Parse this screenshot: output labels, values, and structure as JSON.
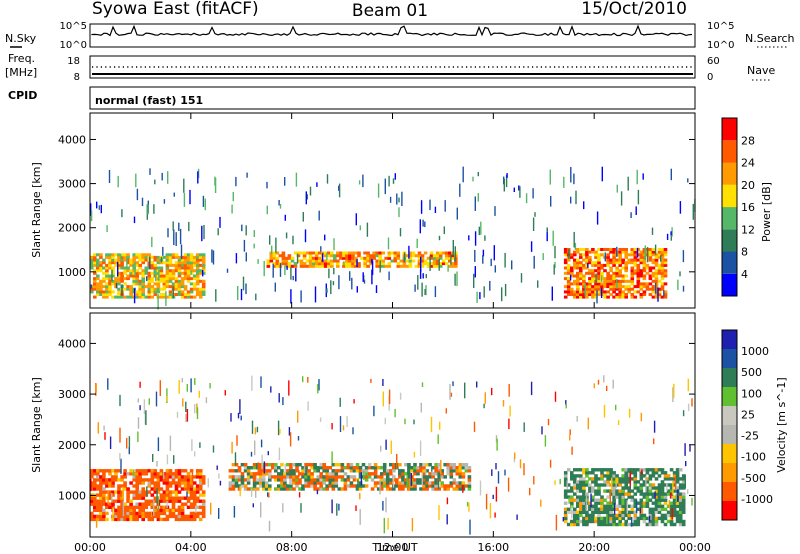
{
  "header": {
    "station": "Syowa East (fitACF)",
    "beam": "Beam 01",
    "date": "15/Oct/2010"
  },
  "panels": {
    "nsky": {
      "left_label": "N.Sky",
      "right_label": "N.Search",
      "ticks_left": [
        "10^5",
        "10^0"
      ],
      "ticks_right": [
        "10^5",
        "10^0"
      ]
    },
    "freq": {
      "label_top": "Freq.",
      "label_unit": "[MHz]",
      "ticks_left": [
        "18",
        "8"
      ],
      "ticks_right": [
        "60",
        "0"
      ],
      "right_label": "Nave"
    },
    "cpid": {
      "label": "CPID",
      "text": "normal (fast) 151"
    }
  },
  "colors": {
    "power": [
      "#0000ff",
      "#1c52a3",
      "#2e7d57",
      "#55b868",
      "#ffe000",
      "#ff9a00",
      "#ff5a00",
      "#ff0000"
    ],
    "velocity": [
      "#ff0000",
      "#ff5a00",
      "#ff9a00",
      "#ffc400",
      "#b7b7b2",
      "#c8c8c0",
      "#60c030",
      "#2e7d57",
      "#1c52a3",
      "#2020b0"
    ]
  },
  "chart_data": [
    {
      "type": "heatmap",
      "name": "power",
      "ylabel": "Slant Range [km]",
      "xlabel": "Time UT",
      "xlim": [
        "00:00",
        "24:00"
      ],
      "ylim": [
        180,
        4600
      ],
      "x_ticks": [
        "00:00",
        "04:00",
        "08:00",
        "12:00",
        "16:00",
        "20:00",
        "00:00"
      ],
      "y_ticks": [
        "1000",
        "2000",
        "3000",
        "4000"
      ],
      "colorbar": {
        "label": "Power [dB]",
        "ticks": [
          "4",
          "8",
          "12",
          "16",
          "20",
          "24",
          "28"
        ]
      },
      "regions": [
        {
          "t_start": 0.0,
          "t_end": 4.5,
          "range_from": 400,
          "range_to": 1400,
          "value_db": 20
        },
        {
          "t_start": 7.0,
          "t_end": 14.5,
          "range_from": 1100,
          "range_to": 1450,
          "value_db": 22
        },
        {
          "t_start": 18.8,
          "t_end": 22.8,
          "range_from": 400,
          "range_to": 1500,
          "value_db": 24
        }
      ]
    },
    {
      "type": "heatmap",
      "name": "velocity",
      "ylabel": "Slant Range [km]",
      "xlabel": "Time UT",
      "xlim": [
        "00:00",
        "24:00"
      ],
      "ylim": [
        180,
        4600
      ],
      "x_ticks": [
        "00:00",
        "04:00",
        "08:00",
        "12:00",
        "16:00",
        "20:00",
        "00:00"
      ],
      "y_ticks": [
        "1000",
        "2000",
        "3000",
        "4000"
      ],
      "colorbar": {
        "label": "Velocity [m s^-1]",
        "ticks": [
          "1000",
          "500",
          "100",
          "25",
          "-25",
          "-100",
          "-500",
          "-1000"
        ]
      },
      "regions": [
        {
          "t_start": 0.0,
          "t_end": 4.5,
          "range_from": 500,
          "range_to": 1500,
          "value_ms": -300
        },
        {
          "t_start": 5.5,
          "t_end": 15.0,
          "range_from": 1100,
          "range_to": 1600,
          "value_ms": 0
        },
        {
          "t_start": 18.8,
          "t_end": 23.5,
          "range_from": 400,
          "range_to": 1500,
          "value_ms": 200
        }
      ]
    }
  ]
}
